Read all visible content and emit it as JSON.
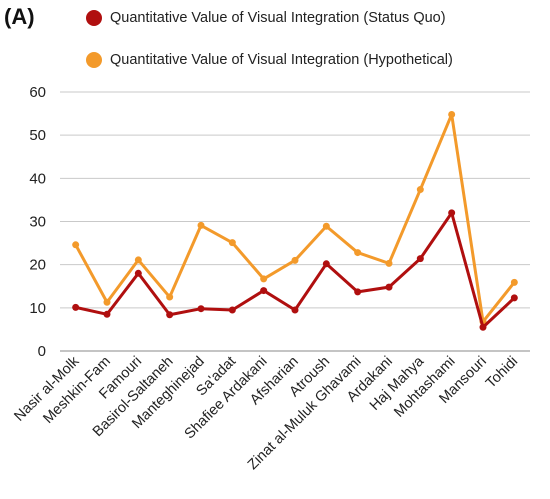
{
  "panel_label": "(A)",
  "chart_data": {
    "type": "line",
    "title": "",
    "xlabel": "",
    "ylabel": "",
    "ylim": [
      0,
      60
    ],
    "yticks": [
      0,
      10,
      20,
      30,
      40,
      50,
      60
    ],
    "grid": "horizontal",
    "legend_position": "top",
    "categories": [
      "Nasir al-Molk",
      "Meshkin-Fam",
      "Famouri",
      "Basirol-Saltaneh",
      "Manteghinejad",
      "Sa'adat",
      "Shafiee Ardakani",
      "Afsharian",
      "Atroush",
      "Zinat al-Muluk Ghavami",
      "Ardakani",
      "Haj Mahya",
      "Mohtashami",
      "Mansouri",
      "Tohidi"
    ],
    "series": [
      {
        "name": "Quantitative Value of Visual Integration (Status Quo)",
        "color": "#b00f0f",
        "values": [
          10.1,
          8.5,
          18.0,
          8.4,
          9.8,
          9.5,
          14.0,
          9.5,
          20.2,
          13.7,
          14.8,
          21.4,
          32.0,
          5.5,
          12.3
        ]
      },
      {
        "name": "Quantitative Value of Visual Integration (Hypothetical)",
        "color": "#f39a2b",
        "values": [
          24.6,
          11.3,
          21.1,
          12.5,
          29.1,
          25.1,
          16.7,
          21.0,
          28.9,
          22.8,
          20.3,
          37.4,
          54.8,
          6.8,
          15.9
        ]
      }
    ]
  }
}
